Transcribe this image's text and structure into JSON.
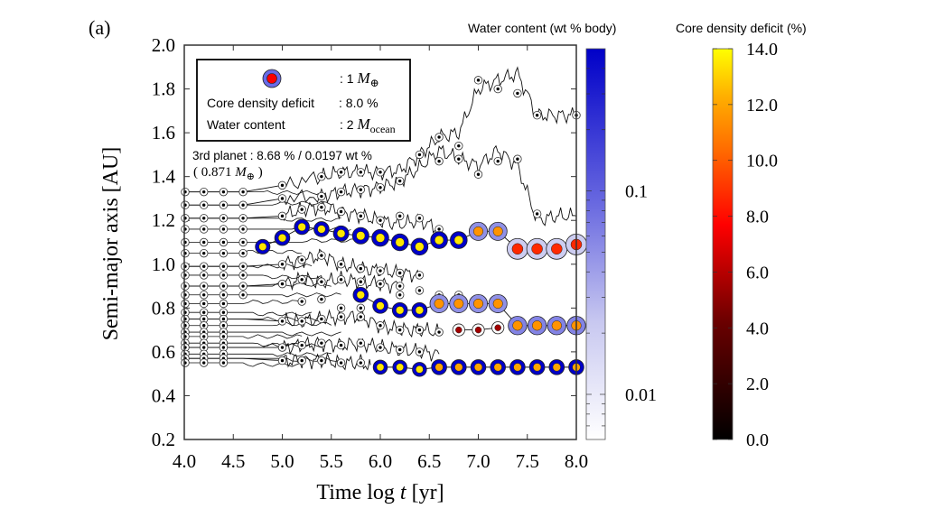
{
  "panel_label": "(a)",
  "chart_data": {
    "type": "scatter",
    "subtype": "trajectory-lines-with-sized-colored-markers",
    "xlabel_prefix": "Time log ",
    "xlabel_var": "t",
    "xlabel_suffix": " [yr]",
    "ylabel": "Semi-major axis  [AU]",
    "xlim": [
      4.0,
      8.0
    ],
    "ylim": [
      0.2,
      2.0
    ],
    "xticks": [
      "4.0",
      "4.5",
      "5.0",
      "5.5",
      "6.0",
      "6.5",
      "7.0",
      "7.5",
      "8.0"
    ],
    "yticks": [
      "0.2",
      "0.4",
      "0.6",
      "0.8",
      "1.0",
      "1.2",
      "1.4",
      "1.6",
      "1.8",
      "2.0"
    ],
    "grid": false,
    "legend_box": {
      "marker_mass": ": 1 ",
      "marker_mass_unit": "M",
      "marker_mass_sub": "⊕",
      "core_label": "Core density deficit",
      "core_value": ": 8.0 %",
      "water_label": "Water content",
      "water_value": ": 2 ",
      "water_unit": "M",
      "water_unit_sub": "ocean",
      "placement": "top-left"
    },
    "annotation": {
      "line1": "3rd planet : 8.68 % / 0.0197 wt %",
      "line2_prefix": "( 0.871 ",
      "line2_unit": "M",
      "line2_sub": "⊕",
      "line2_suffix": " )"
    },
    "colorbars": [
      {
        "title": "Water content (wt % body)",
        "scale": "log",
        "range": [
          0.006,
          0.5
        ],
        "ticks": [
          {
            "value": 0.1,
            "label": "0.1"
          },
          {
            "value": 0.01,
            "label": "0.01"
          }
        ],
        "colors": [
          "#ffffff",
          "#0000cc"
        ]
      },
      {
        "title": "Core density deficit (%)",
        "scale": "linear",
        "range": [
          0.0,
          14.0
        ],
        "ticks": [
          {
            "value": 0,
            "label": "0.0"
          },
          {
            "value": 2,
            "label": "2.0"
          },
          {
            "value": 4,
            "label": "4.0"
          },
          {
            "value": 6,
            "label": "6.0"
          },
          {
            "value": 8,
            "label": "8.0"
          },
          {
            "value": 10,
            "label": "10.0"
          },
          {
            "value": 12,
            "label": "12.0"
          },
          {
            "value": 14,
            "label": "14.0"
          }
        ],
        "colors": [
          "#000000",
          "#8b0000",
          "#ff0000",
          "#ff8c00",
          "#ffff00"
        ]
      }
    ],
    "sample_times": [
      4.2,
      4.4,
      4.6,
      4.8,
      5.0,
      5.2,
      5.4,
      5.6,
      5.8,
      6.0,
      6.2,
      6.4,
      6.6,
      6.8,
      7.0,
      7.2,
      7.4,
      7.6,
      7.8,
      8.0
    ],
    "small_bodies_initial_a": [
      1.33,
      1.27,
      1.21,
      1.16,
      1.1,
      1.05,
      0.99,
      0.95,
      0.9,
      0.86,
      0.82,
      0.78,
      0.75,
      0.72,
      0.69,
      0.67,
      0.64,
      0.62,
      0.59,
      0.57,
      0.55
    ],
    "trajectories": [
      {
        "name": "outer-1",
        "x": [
          4.0,
          4.6,
          5.0,
          5.4,
          5.6,
          5.8,
          6.0,
          6.2,
          6.4,
          6.6,
          6.8,
          7.0,
          7.2,
          7.4,
          7.6,
          7.8,
          8.0
        ],
        "y": [
          1.33,
          1.33,
          1.36,
          1.4,
          1.42,
          1.42,
          1.42,
          1.43,
          1.5,
          1.58,
          1.6,
          1.8,
          1.84,
          1.87,
          1.68,
          1.68,
          1.68
        ]
      },
      {
        "name": "outer-2",
        "x": [
          4.0,
          4.6,
          5.0,
          5.4,
          5.6,
          5.8,
          6.0,
          6.2,
          6.4,
          6.6,
          6.8,
          7.0,
          7.2,
          7.4,
          7.6,
          7.8,
          8.0
        ],
        "y": [
          1.27,
          1.27,
          1.3,
          1.31,
          1.33,
          1.34,
          1.35,
          1.38,
          1.44,
          1.52,
          1.48,
          1.45,
          1.52,
          1.45,
          1.2,
          1.22,
          1.22
        ]
      },
      {
        "name": "mid-1",
        "x": [
          4.0,
          4.6,
          5.0,
          5.2,
          5.4,
          5.6,
          5.8,
          6.0,
          6.2,
          6.4,
          6.6
        ],
        "y": [
          1.21,
          1.21,
          1.22,
          1.25,
          1.26,
          1.24,
          1.22,
          1.2,
          1.18,
          1.2,
          1.16
        ]
      },
      {
        "name": "mid-2",
        "x": [
          4.0,
          4.6,
          5.0,
          5.2,
          5.4,
          5.6,
          5.8,
          6.0,
          6.2,
          6.4
        ],
        "y": [
          0.99,
          0.99,
          1.0,
          1.02,
          1.04,
          1.0,
          0.98,
          0.97,
          0.96,
          0.95
        ]
      },
      {
        "name": "mid-3",
        "x": [
          4.0,
          4.6,
          5.0,
          5.2,
          5.4,
          5.6,
          5.8,
          6.0,
          6.2
        ],
        "y": [
          0.9,
          0.9,
          0.91,
          0.93,
          0.92,
          0.93,
          0.92,
          0.91,
          0.9
        ]
      },
      {
        "name": "low-1",
        "x": [
          4.0,
          4.6,
          5.0,
          5.2,
          5.4,
          5.6,
          5.8,
          6.0,
          6.2,
          6.4,
          6.6
        ],
        "y": [
          0.75,
          0.75,
          0.74,
          0.74,
          0.75,
          0.76,
          0.76,
          0.72,
          0.7,
          0.7,
          0.69
        ]
      },
      {
        "name": "low-2",
        "x": [
          4.0,
          4.6,
          5.0,
          5.2,
          5.4,
          5.6,
          5.8,
          6.0,
          6.2,
          6.4,
          6.6
        ],
        "y": [
          0.62,
          0.62,
          0.62,
          0.63,
          0.64,
          0.63,
          0.64,
          0.62,
          0.61,
          0.6,
          0.59
        ]
      },
      {
        "name": "low-3",
        "x": [
          4.0,
          4.6,
          5.0,
          5.2,
          5.4,
          5.6,
          5.8,
          5.9
        ],
        "y": [
          0.57,
          0.57,
          0.56,
          0.56,
          0.56,
          0.55,
          0.55,
          0.54
        ]
      }
    ],
    "planets": [
      {
        "name": "planet-upper",
        "points": [
          {
            "x": 4.8,
            "y": 1.08,
            "mass": 0.25,
            "water": 0.5,
            "core": 13.5
          },
          {
            "x": 5.0,
            "y": 1.12,
            "mass": 0.28,
            "water": 0.5,
            "core": 13.5
          },
          {
            "x": 5.2,
            "y": 1.17,
            "mass": 0.28,
            "water": 0.5,
            "core": 13.5
          },
          {
            "x": 5.4,
            "y": 1.16,
            "mass": 0.28,
            "water": 0.5,
            "core": 13.5
          },
          {
            "x": 5.6,
            "y": 1.14,
            "mass": 0.3,
            "water": 0.5,
            "core": 13.5
          },
          {
            "x": 5.8,
            "y": 1.13,
            "mass": 0.38,
            "water": 0.5,
            "core": 13.5
          },
          {
            "x": 6.0,
            "y": 1.12,
            "mass": 0.42,
            "water": 0.5,
            "core": 13.5
          },
          {
            "x": 6.2,
            "y": 1.1,
            "mass": 0.42,
            "water": 0.5,
            "core": 13.5
          },
          {
            "x": 6.4,
            "y": 1.08,
            "mass": 0.42,
            "water": 0.5,
            "core": 13.5
          },
          {
            "x": 6.6,
            "y": 1.11,
            "mass": 0.42,
            "water": 0.5,
            "core": 13.5
          },
          {
            "x": 6.8,
            "y": 1.11,
            "mass": 0.42,
            "water": 0.5,
            "core": 13.5
          },
          {
            "x": 7.0,
            "y": 1.15,
            "mass": 0.55,
            "water": 0.05,
            "core": 11.5
          },
          {
            "x": 7.2,
            "y": 1.15,
            "mass": 0.55,
            "water": 0.05,
            "core": 11.5
          },
          {
            "x": 7.4,
            "y": 1.07,
            "mass": 0.87,
            "water": 0.02,
            "core": 8.7
          },
          {
            "x": 7.6,
            "y": 1.07,
            "mass": 0.87,
            "water": 0.02,
            "core": 8.7
          },
          {
            "x": 7.8,
            "y": 1.07,
            "mass": 0.87,
            "water": 0.02,
            "core": 8.7
          },
          {
            "x": 8.0,
            "y": 1.09,
            "mass": 0.87,
            "water": 0.02,
            "core": 8.7
          }
        ]
      },
      {
        "name": "planet-middle",
        "points": [
          {
            "x": 5.8,
            "y": 0.86,
            "mass": 0.28,
            "water": 0.5,
            "core": 13.5
          },
          {
            "x": 6.0,
            "y": 0.81,
            "mass": 0.28,
            "water": 0.5,
            "core": 13.5
          },
          {
            "x": 6.2,
            "y": 0.79,
            "mass": 0.28,
            "water": 0.5,
            "core": 13.5
          },
          {
            "x": 6.4,
            "y": 0.79,
            "mass": 0.28,
            "water": 0.5,
            "core": 13.5
          },
          {
            "x": 6.6,
            "y": 0.82,
            "mass": 0.55,
            "water": 0.05,
            "core": 11.5
          },
          {
            "x": 6.8,
            "y": 0.82,
            "mass": 0.55,
            "water": 0.05,
            "core": 11.5
          },
          {
            "x": 7.0,
            "y": 0.82,
            "mass": 0.55,
            "water": 0.05,
            "core": 11.5
          },
          {
            "x": 7.2,
            "y": 0.82,
            "mass": 0.55,
            "water": 0.05,
            "core": 11.5
          },
          {
            "x": 7.4,
            "y": 0.72,
            "mass": 0.58,
            "water": 0.06,
            "core": 11.5
          },
          {
            "x": 7.6,
            "y": 0.72,
            "mass": 0.58,
            "water": 0.06,
            "core": 11.5
          },
          {
            "x": 7.8,
            "y": 0.72,
            "mass": 0.58,
            "water": 0.06,
            "core": 11.5
          },
          {
            "x": 8.0,
            "y": 0.72,
            "mass": 0.58,
            "water": 0.06,
            "core": 11.5
          }
        ]
      },
      {
        "name": "planet-small-red",
        "points": [
          {
            "x": 6.8,
            "y": 0.7,
            "mass": 0.12,
            "water": 0.006,
            "core": 5.5
          },
          {
            "x": 7.0,
            "y": 0.7,
            "mass": 0.12,
            "water": 0.006,
            "core": 5.5
          },
          {
            "x": 7.2,
            "y": 0.71,
            "mass": 0.12,
            "water": 0.006,
            "core": 5.5
          }
        ]
      },
      {
        "name": "planet-inner",
        "points": [
          {
            "x": 6.0,
            "y": 0.53,
            "mass": 0.22,
            "water": 0.5,
            "core": 13.5
          },
          {
            "x": 6.2,
            "y": 0.53,
            "mass": 0.22,
            "water": 0.5,
            "core": 13.5
          },
          {
            "x": 6.4,
            "y": 0.52,
            "mass": 0.22,
            "water": 0.5,
            "core": 13.5
          },
          {
            "x": 6.6,
            "y": 0.53,
            "mass": 0.28,
            "water": 0.5,
            "core": 12.0
          },
          {
            "x": 6.8,
            "y": 0.53,
            "mass": 0.28,
            "water": 0.5,
            "core": 12.0
          },
          {
            "x": 7.0,
            "y": 0.53,
            "mass": 0.28,
            "water": 0.5,
            "core": 12.0
          },
          {
            "x": 7.2,
            "y": 0.53,
            "mass": 0.28,
            "water": 0.5,
            "core": 12.0
          },
          {
            "x": 7.4,
            "y": 0.53,
            "mass": 0.28,
            "water": 0.5,
            "core": 12.0
          },
          {
            "x": 7.6,
            "y": 0.53,
            "mass": 0.28,
            "water": 0.5,
            "core": 12.0
          },
          {
            "x": 7.8,
            "y": 0.53,
            "mass": 0.28,
            "water": 0.5,
            "core": 12.0
          },
          {
            "x": 8.0,
            "y": 0.53,
            "mass": 0.28,
            "water": 0.5,
            "core": 12.0
          }
        ]
      }
    ],
    "small_body_markers": [
      {
        "x": 5.0,
        "y": 1.36
      },
      {
        "x": 5.4,
        "y": 1.4
      },
      {
        "x": 5.6,
        "y": 1.42
      },
      {
        "x": 5.8,
        "y": 1.42
      },
      {
        "x": 6.0,
        "y": 1.42
      },
      {
        "x": 6.4,
        "y": 1.5
      },
      {
        "x": 6.6,
        "y": 1.58
      },
      {
        "x": 6.8,
        "y": 1.54
      },
      {
        "x": 7.0,
        "y": 1.84
      },
      {
        "x": 7.2,
        "y": 1.8
      },
      {
        "x": 7.4,
        "y": 1.78
      },
      {
        "x": 7.6,
        "y": 1.68
      },
      {
        "x": 8.0,
        "y": 1.68
      },
      {
        "x": 5.0,
        "y": 1.3
      },
      {
        "x": 5.4,
        "y": 1.31
      },
      {
        "x": 5.6,
        "y": 1.33
      },
      {
        "x": 5.8,
        "y": 1.34
      },
      {
        "x": 6.0,
        "y": 1.35
      },
      {
        "x": 6.2,
        "y": 1.38
      },
      {
        "x": 6.6,
        "y": 1.47
      },
      {
        "x": 6.8,
        "y": 1.48
      },
      {
        "x": 7.0,
        "y": 1.41
      },
      {
        "x": 7.2,
        "y": 1.47
      },
      {
        "x": 7.4,
        "y": 1.48
      },
      {
        "x": 7.6,
        "y": 1.23
      },
      {
        "x": 5.0,
        "y": 1.22
      },
      {
        "x": 5.2,
        "y": 1.25
      },
      {
        "x": 5.4,
        "y": 1.26
      },
      {
        "x": 5.6,
        "y": 1.24
      },
      {
        "x": 5.8,
        "y": 1.22
      },
      {
        "x": 6.0,
        "y": 1.2
      },
      {
        "x": 6.2,
        "y": 1.22
      },
      {
        "x": 6.4,
        "y": 1.21
      },
      {
        "x": 6.6,
        "y": 1.16
      },
      {
        "x": 5.0,
        "y": 1.0
      },
      {
        "x": 5.2,
        "y": 1.02
      },
      {
        "x": 5.4,
        "y": 1.04
      },
      {
        "x": 5.6,
        "y": 1.0
      },
      {
        "x": 5.8,
        "y": 0.98
      },
      {
        "x": 6.0,
        "y": 0.97
      },
      {
        "x": 6.2,
        "y": 0.96
      },
      {
        "x": 6.4,
        "y": 0.95
      },
      {
        "x": 5.0,
        "y": 0.91
      },
      {
        "x": 5.2,
        "y": 0.93
      },
      {
        "x": 5.4,
        "y": 0.92
      },
      {
        "x": 5.6,
        "y": 0.93
      },
      {
        "x": 5.8,
        "y": 0.92
      },
      {
        "x": 6.0,
        "y": 0.91
      },
      {
        "x": 6.2,
        "y": 0.9
      },
      {
        "x": 5.0,
        "y": 0.74
      },
      {
        "x": 5.2,
        "y": 0.74
      },
      {
        "x": 5.4,
        "y": 0.75
      },
      {
        "x": 5.6,
        "y": 0.76
      },
      {
        "x": 5.8,
        "y": 0.76
      },
      {
        "x": 6.0,
        "y": 0.72
      },
      {
        "x": 6.2,
        "y": 0.7
      },
      {
        "x": 6.4,
        "y": 0.7
      },
      {
        "x": 6.6,
        "y": 0.69
      },
      {
        "x": 5.0,
        "y": 0.62
      },
      {
        "x": 5.2,
        "y": 0.63
      },
      {
        "x": 5.4,
        "y": 0.64
      },
      {
        "x": 5.6,
        "y": 0.63
      },
      {
        "x": 5.8,
        "y": 0.64
      },
      {
        "x": 6.0,
        "y": 0.62
      },
      {
        "x": 6.2,
        "y": 0.61
      },
      {
        "x": 6.4,
        "y": 0.6
      },
      {
        "x": 5.0,
        "y": 0.56
      },
      {
        "x": 5.2,
        "y": 0.56
      },
      {
        "x": 5.4,
        "y": 0.56
      },
      {
        "x": 5.6,
        "y": 0.55
      },
      {
        "x": 5.8,
        "y": 0.55
      },
      {
        "x": 5.2,
        "y": 0.83
      },
      {
        "x": 5.4,
        "y": 0.84
      },
      {
        "x": 5.6,
        "y": 0.8
      },
      {
        "x": 5.8,
        "y": 0.8
      },
      {
        "x": 6.2,
        "y": 0.86
      },
      {
        "x": 6.4,
        "y": 0.88
      },
      {
        "x": 6.6,
        "y": 0.86
      },
      {
        "x": 6.8,
        "y": 0.86
      }
    ]
  }
}
